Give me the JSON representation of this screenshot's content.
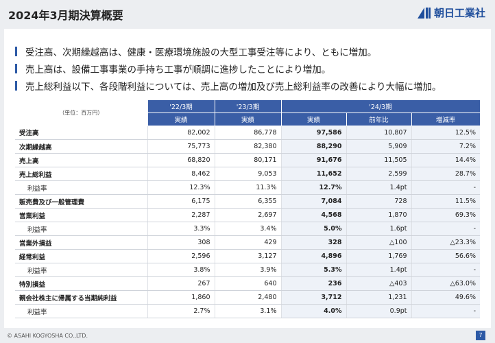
{
  "header": {
    "title": "2024年3月期決算概要",
    "logo": "朝日工業社"
  },
  "bullets": [
    "受注高、次期繰越高は、健康・医療環境施設の大型工事受注等により、ともに増加。",
    "売上高は、設備工事事業の手持ち工事が順調に進捗したことにより増加。",
    "売上総利益以下、各段階利益については、売上高の増加及び売上総利益率の改善により大幅に増加。"
  ],
  "table": {
    "unit": "（単位：百万円）",
    "periods": [
      "'22/3期",
      "'23/3期",
      "'24/3期"
    ],
    "subheaders": [
      "実績",
      "実績",
      "実績",
      "前年比",
      "増減率"
    ],
    "rows": [
      {
        "cells": [
          "受注高",
          "82,002",
          "86,778",
          "97,586",
          "10,807",
          "12.5%"
        ]
      },
      {
        "cells": [
          "次期繰越高",
          "75,773",
          "82,380",
          "88,290",
          "5,909",
          "7.2%"
        ]
      },
      {
        "cells": [
          "売上高",
          "68,820",
          "80,171",
          "91,676",
          "11,505",
          "14.4%"
        ]
      },
      {
        "cells": [
          "売上総利益",
          "8,462",
          "9,053",
          "11,652",
          "2,599",
          "28.7%"
        ],
        "sub": {
          "cells": [
            "利益率",
            "12.3%",
            "11.3%",
            "12.7%",
            "1.4pt",
            "-"
          ]
        }
      },
      {
        "cells": [
          "販売費及び一般管理費",
          "6,175",
          "6,355",
          "7,084",
          "728",
          "11.5%"
        ]
      },
      {
        "cells": [
          "営業利益",
          "2,287",
          "2,697",
          "4,568",
          "1,870",
          "69.3%"
        ],
        "sub": {
          "cells": [
            "利益率",
            "3.3%",
            "3.4%",
            "5.0%",
            "1.6pt",
            "-"
          ]
        }
      },
      {
        "cells": [
          "営業外損益",
          "308",
          "429",
          "328",
          "△100",
          "△23.3%"
        ]
      },
      {
        "cells": [
          "経常利益",
          "2,596",
          "3,127",
          "4,896",
          "1,769",
          "56.6%"
        ],
        "sub": {
          "cells": [
            "利益率",
            "3.8%",
            "3.9%",
            "5.3%",
            "1.4pt",
            "-"
          ]
        }
      },
      {
        "cells": [
          "特別損益",
          "267",
          "640",
          "236",
          "△403",
          "△63.0%"
        ]
      },
      {
        "cells": [
          "親会社株主に帰属する当期純利益",
          "1,860",
          "2,480",
          "3,712",
          "1,231",
          "49.6%"
        ],
        "sub": {
          "cells": [
            "利益率",
            "2.7%",
            "3.1%",
            "4.0%",
            "0.9pt",
            "-"
          ]
        }
      }
    ]
  },
  "footer": {
    "copyright": "© ASAHI KOGYOSHA CO.,LTD.",
    "page": "7"
  }
}
